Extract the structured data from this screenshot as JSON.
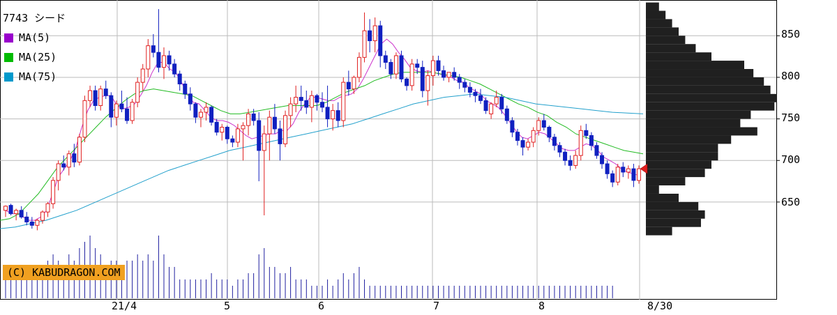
{
  "chart_title": "7743 シード",
  "legend": [
    {
      "label": "MA(5)",
      "color": "#9900cc"
    },
    {
      "label": "MA(25)",
      "color": "#00bb00"
    },
    {
      "label": "MA(75)",
      "color": "#0099cc"
    }
  ],
  "credit": "(C) KABUDRAGON.COM",
  "chart_data": {
    "type": "candlestick",
    "title": "7743 シード",
    "x_ticks": [
      "21/4",
      "5",
      "6",
      "7",
      "8",
      "8/30"
    ],
    "y_ticks": [
      650,
      700,
      750,
      800,
      850
    ],
    "ylim": [
      608,
      893
    ],
    "grid": true,
    "colors": {
      "up": "#e02020",
      "down": "#1020c0",
      "volume": "#2020a0",
      "profile": "#202020",
      "current_marker": "#e02020"
    },
    "ohlc_series": [
      [
        640,
        646,
        632,
        645
      ],
      [
        646,
        648,
        634,
        636
      ],
      [
        636,
        642,
        628,
        640
      ],
      [
        640,
        645,
        630,
        632
      ],
      [
        632,
        638,
        622,
        626
      ],
      [
        626,
        632,
        618,
        622
      ],
      [
        622,
        630,
        616,
        628
      ],
      [
        628,
        640,
        624,
        638
      ],
      [
        638,
        650,
        632,
        648
      ],
      [
        648,
        680,
        642,
        676
      ],
      [
        676,
        700,
        664,
        696
      ],
      [
        696,
        706,
        688,
        692
      ],
      [
        692,
        712,
        682,
        708
      ],
      [
        708,
        720,
        692,
        698
      ],
      [
        698,
        732,
        694,
        728
      ],
      [
        728,
        778,
        722,
        772
      ],
      [
        772,
        790,
        764,
        784
      ],
      [
        784,
        790,
        760,
        766
      ],
      [
        766,
        790,
        760,
        786
      ],
      [
        786,
        796,
        774,
        778
      ],
      [
        778,
        782,
        740,
        752
      ],
      [
        752,
        772,
        742,
        768
      ],
      [
        768,
        784,
        758,
        762
      ],
      [
        762,
        776,
        744,
        748
      ],
      [
        748,
        774,
        744,
        770
      ],
      [
        770,
        800,
        764,
        794
      ],
      [
        794,
        816,
        784,
        810
      ],
      [
        810,
        846,
        800,
        838
      ],
      [
        838,
        852,
        824,
        830
      ],
      [
        830,
        882,
        806,
        812
      ],
      [
        812,
        836,
        798,
        826
      ],
      [
        826,
        832,
        808,
        816
      ],
      [
        816,
        822,
        800,
        804
      ],
      [
        804,
        808,
        784,
        792
      ],
      [
        792,
        796,
        774,
        780
      ],
      [
        780,
        788,
        760,
        768
      ],
      [
        768,
        770,
        745,
        752
      ],
      [
        752,
        762,
        740,
        758
      ],
      [
        758,
        770,
        748,
        764
      ],
      [
        764,
        766,
        742,
        746
      ],
      [
        746,
        750,
        730,
        734
      ],
      [
        734,
        744,
        724,
        740
      ],
      [
        740,
        742,
        720,
        726
      ],
      [
        726,
        730,
        716,
        722
      ],
      [
        722,
        744,
        716,
        738
      ],
      [
        738,
        746,
        700,
        742
      ],
      [
        742,
        762,
        730,
        756
      ],
      [
        756,
        762,
        742,
        748
      ],
      [
        748,
        758,
        675,
        712
      ],
      [
        712,
        742,
        634,
        732
      ],
      [
        732,
        760,
        700,
        752
      ],
      [
        752,
        768,
        732,
        738
      ],
      [
        738,
        748,
        700,
        720
      ],
      [
        720,
        760,
        716,
        754
      ],
      [
        754,
        776,
        740,
        768
      ],
      [
        768,
        790,
        758,
        776
      ],
      [
        776,
        790,
        760,
        772
      ],
      [
        772,
        784,
        756,
        764
      ],
      [
        764,
        784,
        746,
        778
      ],
      [
        778,
        780,
        760,
        770
      ],
      [
        770,
        782,
        758,
        764
      ],
      [
        764,
        790,
        740,
        750
      ],
      [
        750,
        768,
        736,
        760
      ],
      [
        760,
        770,
        740,
        748
      ],
      [
        748,
        800,
        740,
        794
      ],
      [
        794,
        808,
        778,
        786
      ],
      [
        786,
        802,
        780,
        800
      ],
      [
        800,
        830,
        794,
        824
      ],
      [
        824,
        878,
        818,
        856
      ],
      [
        856,
        870,
        830,
        844
      ],
      [
        844,
        872,
        830,
        862
      ],
      [
        862,
        868,
        812,
        826
      ],
      [
        826,
        832,
        810,
        818
      ],
      [
        818,
        822,
        798,
        804
      ],
      [
        804,
        830,
        798,
        826
      ],
      [
        826,
        832,
        794,
        798
      ],
      [
        798,
        800,
        784,
        790
      ],
      [
        790,
        822,
        784,
        816
      ],
      [
        816,
        822,
        804,
        812
      ],
      [
        812,
        820,
        776,
        784
      ],
      [
        784,
        808,
        766,
        802
      ],
      [
        802,
        826,
        790,
        820
      ],
      [
        820,
        826,
        802,
        808
      ],
      [
        808,
        814,
        796,
        800
      ],
      [
        800,
        806,
        794,
        806
      ],
      [
        806,
        812,
        796,
        800
      ],
      [
        800,
        804,
        786,
        794
      ],
      [
        794,
        798,
        782,
        788
      ],
      [
        788,
        794,
        776,
        782
      ],
      [
        782,
        786,
        770,
        778
      ],
      [
        778,
        786,
        768,
        772
      ],
      [
        772,
        776,
        756,
        760
      ],
      [
        756,
        770,
        750,
        768
      ],
      [
        768,
        784,
        764,
        776
      ],
      [
        776,
        780,
        756,
        762
      ],
      [
        762,
        766,
        744,
        748
      ],
      [
        748,
        752,
        728,
        734
      ],
      [
        734,
        738,
        718,
        724
      ],
      [
        724,
        728,
        706,
        716
      ],
      [
        716,
        726,
        712,
        722
      ],
      [
        722,
        740,
        716,
        736
      ],
      [
        736,
        752,
        730,
        748
      ],
      [
        748,
        756,
        736,
        740
      ],
      [
        740,
        742,
        722,
        728
      ],
      [
        728,
        732,
        712,
        718
      ],
      [
        718,
        722,
        704,
        710
      ],
      [
        710,
        714,
        694,
        700
      ],
      [
        700,
        706,
        688,
        694
      ],
      [
        694,
        712,
        690,
        706
      ],
      [
        706,
        742,
        700,
        736
      ],
      [
        736,
        744,
        726,
        730
      ],
      [
        730,
        734,
        712,
        718
      ],
      [
        718,
        722,
        702,
        706
      ],
      [
        706,
        710,
        690,
        696
      ],
      [
        696,
        700,
        678,
        684
      ],
      [
        684,
        688,
        668,
        674
      ],
      [
        674,
        696,
        670,
        692
      ],
      [
        692,
        698,
        680,
        686
      ],
      [
        686,
        694,
        678,
        690
      ],
      [
        690,
        696,
        668,
        676
      ],
      [
        676,
        694,
        672,
        690
      ]
    ],
    "moving_averages": {
      "MA(5)": [
        640,
        636,
        636,
        632,
        628,
        628,
        632,
        640,
        660,
        680,
        690,
        700,
        716,
        740,
        760,
        772,
        776,
        778,
        778,
        766,
        762,
        764,
        768,
        778,
        790,
        806,
        818,
        818,
        810,
        806,
        794,
        780,
        770,
        768,
        760,
        752,
        748,
        748,
        746,
        742,
        736,
        730,
        726,
        728,
        730,
        732,
        732,
        736,
        736,
        744,
        758,
        768,
        776,
        776,
        774,
        772,
        772,
        776,
        778,
        780,
        786,
        798,
        812,
        826,
        840,
        846,
        840,
        830,
        822,
        812,
        808,
        806,
        808,
        806,
        804,
        802,
        800,
        796,
        794,
        788,
        784,
        780,
        772,
        768,
        764,
        756,
        746,
        736,
        728,
        726,
        730,
        734,
        732,
        726,
        720,
        714,
        712,
        712,
        716,
        720,
        718,
        712,
        704,
        700,
        696,
        690,
        686,
        684,
        682
      ],
      "MA(25)": [
        628,
        630,
        636,
        648,
        660,
        676,
        692,
        704,
        716,
        728,
        740,
        752,
        762,
        772,
        780,
        784,
        786,
        784,
        782,
        780,
        778,
        772,
        766,
        760,
        756,
        756,
        758,
        760,
        762,
        764,
        766,
        766,
        766,
        766,
        770,
        776,
        782,
        786,
        790,
        796,
        800,
        804,
        806,
        806,
        806,
        806,
        804,
        802,
        800,
        796,
        792,
        786,
        780,
        774,
        768,
        764,
        758,
        754,
        746,
        740,
        732,
        728,
        724,
        720,
        716,
        712,
        710,
        708
      ],
      "MA(75)": [
        618,
        620,
        624,
        628,
        634,
        640,
        648,
        656,
        664,
        672,
        680,
        688,
        694,
        700,
        706,
        712,
        716,
        720,
        724,
        728,
        732,
        736,
        740,
        744,
        750,
        756,
        762,
        768,
        772,
        776,
        778,
        780,
        778,
        776,
        772,
        768,
        766,
        764,
        762,
        760,
        758,
        757,
        756
      ]
    },
    "volume_relative": [
      0.5,
      0.4,
      0.5,
      0.4,
      0.4,
      0.5,
      0.5,
      0.5,
      0.6,
      0.7,
      0.6,
      0.5,
      0.7,
      0.6,
      0.8,
      0.9,
      1.0,
      0.8,
      0.7,
      0.5,
      0.6,
      0.6,
      0.5,
      0.6,
      0.6,
      0.7,
      0.6,
      0.7,
      0.6,
      1.0,
      0.7,
      0.5,
      0.5,
      0.3,
      0.3,
      0.3,
      0.3,
      0.3,
      0.3,
      0.4,
      0.3,
      0.3,
      0.3,
      0.2,
      0.3,
      0.3,
      0.4,
      0.4,
      0.7,
      0.8,
      0.5,
      0.5,
      0.4,
      0.4,
      0.5,
      0.3,
      0.3,
      0.3,
      0.2,
      0.2,
      0.2,
      0.3,
      0.2,
      0.3,
      0.4,
      0.3,
      0.4,
      0.5,
      0.3,
      0.2,
      0.2,
      0.2,
      0.2,
      0.2,
      0.2,
      0.2,
      0.2,
      0.2,
      0.2,
      0.2,
      0.2,
      0.2,
      0.2,
      0.2,
      0.2,
      0.2,
      0.2,
      0.2,
      0.2,
      0.2,
      0.2,
      0.2,
      0.2,
      0.2,
      0.2,
      0.2,
      0.2,
      0.2,
      0.2,
      0.2,
      0.2,
      0.2,
      0.2,
      0.2,
      0.2,
      0.2,
      0.2,
      0.2,
      0.2,
      0.2,
      0.2,
      0.2,
      0.2,
      0.2,
      0.2,
      0.2
    ],
    "volume_profile": {
      "prices": [
        885,
        875,
        865,
        855,
        845,
        835,
        825,
        815,
        805,
        795,
        785,
        775,
        765,
        755,
        745,
        735,
        725,
        715,
        705,
        695,
        685,
        675,
        665,
        655,
        645,
        635,
        625,
        615
      ],
      "relative_volume": [
        0.1,
        0.15,
        0.2,
        0.25,
        0.3,
        0.38,
        0.5,
        0.75,
        0.82,
        0.9,
        0.95,
        1.0,
        0.98,
        0.8,
        0.72,
        0.85,
        0.65,
        0.55,
        0.55,
        0.5,
        0.45,
        0.3,
        0.1,
        0.25,
        0.4,
        0.45,
        0.42,
        0.2
      ]
    },
    "current_price": 690
  }
}
